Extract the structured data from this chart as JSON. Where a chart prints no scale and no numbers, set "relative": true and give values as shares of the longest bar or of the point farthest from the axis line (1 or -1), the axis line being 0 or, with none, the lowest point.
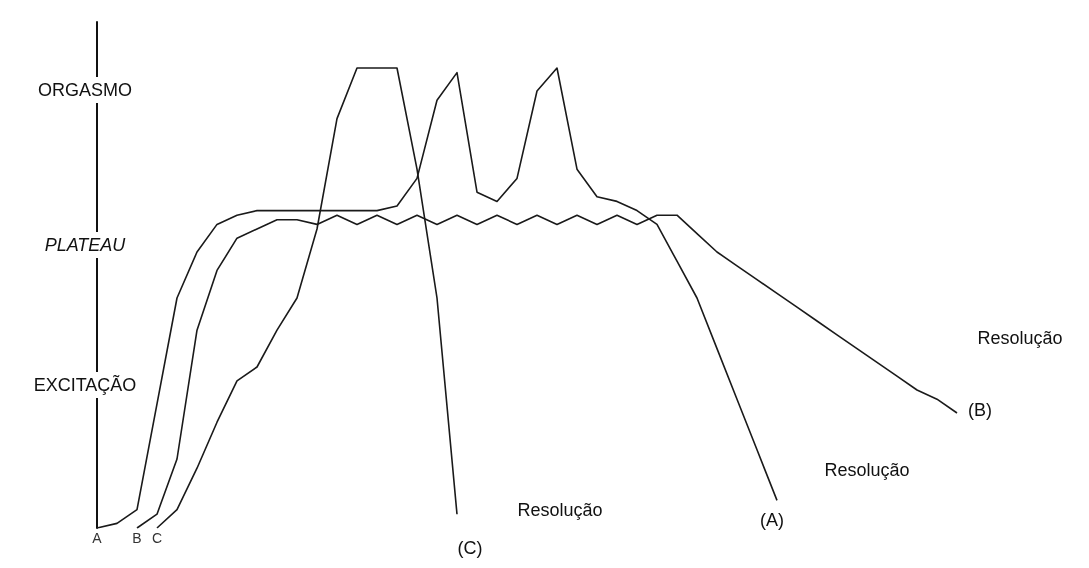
{
  "chart_data": {
    "type": "line",
    "relative": true,
    "legend": false,
    "marker": "none",
    "categories": [
      null,
      null,
      null,
      null,
      null,
      null,
      null,
      null,
      null,
      null,
      null,
      null,
      null,
      null,
      null,
      null,
      null,
      null,
      null,
      null,
      null,
      null,
      null,
      null,
      null,
      null,
      null,
      null,
      null,
      null,
      null,
      null,
      null,
      null,
      null,
      null,
      null,
      null,
      null,
      null,
      null,
      null,
      null,
      null,
      null,
      null,
      null,
      null
    ],
    "series": [
      {
        "name": "A",
        "color": "#1a1a1a",
        "values": [
          0,
          0.01,
          0.04,
          0.27,
          0.5,
          0.6,
          0.66,
          0.68,
          0.69,
          0.69,
          0.69,
          0.69,
          0.69,
          0.69,
          0.69,
          0.7,
          0.76,
          0.93,
          0.99,
          0.73,
          0.71,
          0.76,
          0.95,
          1.0,
          0.78,
          0.72,
          0.71,
          0.69,
          0.66,
          0.58,
          0.5,
          0.39,
          0.28,
          0.17,
          0.06,
          null,
          null,
          null,
          null,
          null,
          null,
          null,
          null,
          null,
          null,
          null,
          null,
          null
        ]
      },
      {
        "name": "B",
        "color": "#1a1a1a",
        "values": [
          null,
          null,
          0,
          0.03,
          0.15,
          0.43,
          0.56,
          0.63,
          0.65,
          0.67,
          0.67,
          0.66,
          0.68,
          0.66,
          0.68,
          0.66,
          0.68,
          0.66,
          0.68,
          0.66,
          0.68,
          0.66,
          0.68,
          0.66,
          0.68,
          0.66,
          0.68,
          0.66,
          0.68,
          0.68,
          0.64,
          0.6,
          0.57,
          0.54,
          0.51,
          0.48,
          0.45,
          0.42,
          0.39,
          0.36,
          0.33,
          0.3,
          0.28,
          0.25,
          null,
          null,
          null,
          null
        ]
      },
      {
        "name": "C",
        "color": "#1a1a1a",
        "values": [
          null,
          null,
          null,
          0,
          0.04,
          0.13,
          0.23,
          0.32,
          0.35,
          0.43,
          0.5,
          0.65,
          0.89,
          1.0,
          1.0,
          1.0,
          0.78,
          0.5,
          0.03,
          null,
          null,
          null,
          null,
          null,
          null,
          null,
          null,
          null,
          null,
          null,
          null,
          null,
          null,
          null,
          null,
          null,
          null,
          null,
          null,
          null,
          null,
          null,
          null,
          null,
          null,
          null,
          null,
          null
        ]
      }
    ],
    "annotations": [
      "ORGASMO",
      "PLATEAU",
      "EXCITAÇÃO",
      "(C)",
      "Resolução",
      "(A)",
      "Resolução",
      "(B)",
      "Resolução"
    ]
  }
}
